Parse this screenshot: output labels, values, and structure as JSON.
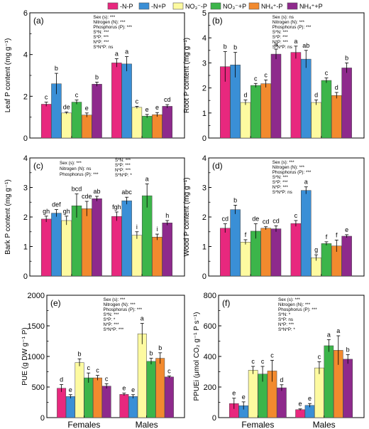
{
  "legend": [
    {
      "label": "-N-P",
      "color": "#e8287e"
    },
    {
      "label": "-N+P",
      "color": "#3a8fd6"
    },
    {
      "label": "NO₃⁻-P",
      "color": "#fdfaa0"
    },
    {
      "label": "NO₃⁻+P",
      "color": "#3cb54a"
    },
    {
      "label": "NH₄⁺-P",
      "color": "#f28a2e"
    },
    {
      "label": "NH₄⁺+P",
      "color": "#8e2a8c"
    }
  ],
  "groups": [
    "Females",
    "Males"
  ],
  "chart_data": [
    {
      "type": "bar",
      "panel": "(a)",
      "ylabel": "Leaf P content (mg g⁻¹)",
      "ylim": [
        0,
        6
      ],
      "yticks": [
        0,
        2,
        4,
        6
      ],
      "categories": [
        "Females",
        "Males"
      ],
      "series": [
        {
          "name": "-N-P",
          "values": [
            1.62,
            3.6
          ],
          "errors": [
            0.1,
            0.2
          ],
          "letters": [
            "c",
            "a"
          ]
        },
        {
          "name": "-N+P",
          "values": [
            2.6,
            3.55
          ],
          "errors": [
            0.5,
            0.35
          ],
          "letters": [
            "b",
            "a"
          ]
        },
        {
          "name": "NO₃⁻-P",
          "values": [
            1.2,
            1.47
          ],
          "errors": [
            0.05,
            0.05
          ],
          "letters": [
            "de",
            "c"
          ]
        },
        {
          "name": "NO₃⁻+P",
          "values": [
            1.72,
            1.05
          ],
          "errors": [
            0.1,
            0.08
          ],
          "letters": [
            "c",
            "e"
          ]
        },
        {
          "name": "NH₄⁺-P",
          "values": [
            1.1,
            1.12
          ],
          "errors": [
            0.1,
            0.1
          ],
          "letters": [
            "e",
            "e"
          ]
        },
        {
          "name": "NH₄⁺+P",
          "values": [
            2.58,
            1.52
          ],
          "errors": [
            0.1,
            0.08
          ],
          "letters": [
            "b",
            "cd"
          ]
        }
      ],
      "stats": [
        "Sex (s): ***",
        "Nitrogen (N): ***",
        "Phosphorus (P): ***",
        "S*N: ***",
        "S*P: ***",
        "N*P: ***",
        "S*N*P: ns"
      ]
    },
    {
      "type": "bar",
      "panel": "(b)",
      "ylabel": "Root P content (mg g⁻¹)",
      "ylim": [
        0,
        5
      ],
      "yticks": [
        0,
        1,
        2,
        3,
        4,
        5
      ],
      "categories": [
        "Females",
        "Males"
      ],
      "series": [
        {
          "name": "-N-P",
          "values": [
            2.85,
            3.42
          ],
          "errors": [
            0.6,
            0.25
          ],
          "letters": [
            "b",
            "a"
          ]
        },
        {
          "name": "-N+P",
          "values": [
            2.92,
            3.15
          ],
          "errors": [
            0.5,
            0.35
          ],
          "letters": [
            "b",
            "ab"
          ]
        },
        {
          "name": "NO₃⁻-P",
          "values": [
            1.42,
            1.42
          ],
          "errors": [
            0.1,
            0.1
          ],
          "letters": [
            "d",
            "d"
          ]
        },
        {
          "name": "NO₃⁻+P",
          "values": [
            2.1,
            2.3
          ],
          "errors": [
            0.08,
            0.1
          ],
          "letters": [
            "c",
            "c"
          ]
        },
        {
          "name": "NH₄⁺-P",
          "values": [
            2.17,
            1.7
          ],
          "errors": [
            0.15,
            0.12
          ],
          "letters": [
            "c",
            "d"
          ]
        },
        {
          "name": "NH₄⁺+P",
          "values": [
            3.35,
            2.8
          ],
          "errors": [
            0.2,
            0.2
          ],
          "letters": [
            "a",
            "b"
          ]
        }
      ],
      "stats": [
        "Sex (s): ns",
        "Nitrogen (N): ***",
        "Phosphorus (P): ***",
        "S*N: ***",
        "S*P: ***",
        "N*P: ***",
        "S*N*P: ns"
      ]
    },
    {
      "type": "bar",
      "panel": "(c)",
      "ylabel": "Bark P content (mg g⁻¹)",
      "ylim": [
        0,
        4
      ],
      "yticks": [
        0,
        1,
        2,
        3,
        4
      ],
      "categories": [
        "Females",
        "Males"
      ],
      "series": [
        {
          "name": "-N-P",
          "values": [
            1.93,
            2.02
          ],
          "errors": [
            0.1,
            0.15
          ],
          "letters": [
            "gh",
            "fgh"
          ]
        },
        {
          "name": "-N+P",
          "values": [
            2.13,
            2.55
          ],
          "errors": [
            0.12,
            0.12
          ],
          "letters": [
            "def",
            "abc"
          ]
        },
        {
          "name": "NO₃⁻-P",
          "values": [
            1.88,
            1.38
          ],
          "errors": [
            0.15,
            0.12
          ],
          "letters": [
            "gh",
            "i"
          ]
        },
        {
          "name": "NO₃⁻+P",
          "values": [
            2.38,
            2.72
          ],
          "errors": [
            0.4,
            0.4
          ],
          "letters": [
            "bcd",
            "a"
          ]
        },
        {
          "name": "NH₄⁺-P",
          "values": [
            2.28,
            1.32
          ],
          "errors": [
            0.25,
            0.1
          ],
          "letters": [
            "cde",
            "i"
          ]
        },
        {
          "name": "NH₄⁺+P",
          "values": [
            2.62,
            1.8
          ],
          "errors": [
            0.08,
            0.08
          ],
          "letters": [
            "ab",
            "h"
          ]
        }
      ],
      "stats_left": [
        "Sex (s): ***",
        "Nitrogen (N): ns",
        "Phosphorus (P): ***"
      ],
      "stats_right": [
        "S*N: ***",
        "S*P: ***",
        "N*P: ***",
        "S*N*P: *"
      ]
    },
    {
      "type": "bar",
      "panel": "(d)",
      "ylabel": "Wood P content (mg g⁻¹)",
      "ylim": [
        0,
        4
      ],
      "yticks": [
        0,
        1,
        2,
        3,
        4
      ],
      "categories": [
        "Females",
        "Males"
      ],
      "series": [
        {
          "name": "-N-P",
          "values": [
            1.62,
            1.78
          ],
          "errors": [
            0.15,
            0.1
          ],
          "letters": [
            "cd",
            "c"
          ]
        },
        {
          "name": "-N+P",
          "values": [
            2.25,
            2.9
          ],
          "errors": [
            0.15,
            0.12
          ],
          "letters": [
            "b",
            "a"
          ]
        },
        {
          "name": "NO₃⁻-P",
          "values": [
            1.15,
            0.62
          ],
          "errors": [
            0.08,
            0.1
          ],
          "letters": [
            "f",
            "g"
          ]
        },
        {
          "name": "NO₃⁻+P",
          "values": [
            1.52,
            1.1
          ],
          "errors": [
            0.25,
            0.06
          ],
          "letters": [
            "de",
            "f"
          ]
        },
        {
          "name": "NH₄⁺-P",
          "values": [
            1.62,
            1.02
          ],
          "errors": [
            0.05,
            0.2
          ],
          "letters": [
            "cd",
            "f"
          ]
        },
        {
          "name": "NH₄⁺+P",
          "values": [
            1.6,
            1.35
          ],
          "errors": [
            0.1,
            0.05
          ],
          "letters": [
            "cd",
            "e"
          ]
        }
      ],
      "stats": [
        "Sex (s): ***",
        "Nitrogen (N): ***",
        "Phosphorus (P): ***",
        "S*N: ***",
        "S*P: ***",
        "N*P: ***",
        "S*N*P: ns"
      ]
    },
    {
      "type": "bar",
      "panel": "(e)",
      "ylabel": "PUE (g DW g⁻¹ P)",
      "ylim": [
        0,
        2000
      ],
      "yticks": [
        0,
        500,
        1000,
        1500,
        2000
      ],
      "categories": [
        "Females",
        "Males"
      ],
      "series": [
        {
          "name": "-N-P",
          "values": [
            480,
            380
          ],
          "errors": [
            60,
            20
          ],
          "letters": [
            "d",
            "e"
          ]
        },
        {
          "name": "-N+P",
          "values": [
            345,
            345
          ],
          "errors": [
            30,
            30
          ],
          "letters": [
            "e",
            "e"
          ]
        },
        {
          "name": "NO₃⁻-P",
          "values": [
            900,
            1370
          ],
          "errors": [
            60,
            170
          ],
          "letters": [
            "b",
            "a"
          ]
        },
        {
          "name": "NO₃⁻+P",
          "values": [
            650,
            920
          ],
          "errors": [
            80,
            50
          ],
          "letters": [
            "c",
            "b"
          ]
        },
        {
          "name": "NH₄⁺-P",
          "values": [
            650,
            970
          ],
          "errors": [
            40,
            90
          ],
          "letters": [
            "c",
            "b"
          ]
        },
        {
          "name": "NH₄⁺+P",
          "values": [
            515,
            665
          ],
          "errors": [
            40,
            15
          ],
          "letters": [
            "c",
            "c"
          ]
        }
      ],
      "stats": [
        "Sex (s): ***",
        "Nitrogen (N): ***",
        "Phosphorus (P): ***",
        "S*N: ***",
        "S*P: *",
        "N*P: ***",
        "S*N*P: ***"
      ]
    },
    {
      "type": "bar",
      "panel": "(f)",
      "ylabel": "PPUEi (μmol CO₂ g⁻¹ P s⁻¹)",
      "ylim": [
        0,
        800
      ],
      "yticks": [
        0,
        200,
        400,
        600,
        800
      ],
      "categories": [
        "Females",
        "Males"
      ],
      "series": [
        {
          "name": "-N-P",
          "values": [
            92,
            52
          ],
          "errors": [
            35,
            5
          ],
          "letters": [
            "e",
            "e"
          ]
        },
        {
          "name": "-N+P",
          "values": [
            78,
            80
          ],
          "errors": [
            25,
            12
          ],
          "letters": [
            "e",
            "e"
          ]
        },
        {
          "name": "NO₃⁻-P",
          "values": [
            310,
            325
          ],
          "errors": [
            25,
            40
          ],
          "letters": [
            "c",
            "c"
          ]
        },
        {
          "name": "NO₃⁻+P",
          "values": [
            285,
            470
          ],
          "errors": [
            50,
            40
          ],
          "letters": [
            "c",
            "a"
          ]
        },
        {
          "name": "NH₄⁺-P",
          "values": [
            305,
            440
          ],
          "errors": [
            70,
            95
          ],
          "letters": [
            "c",
            "a"
          ]
        },
        {
          "name": "NH₄⁺+P",
          "values": [
            195,
            382
          ],
          "errors": [
            20,
            30
          ],
          "letters": [
            "d",
            "b"
          ]
        }
      ],
      "stats": [
        "Sex (s): ***",
        "Nitrogen (N): ***",
        "Phosphorus (P): ***",
        "S*N: *",
        "S*P: ns",
        "N*P: ***",
        "S*N*P: *"
      ]
    }
  ]
}
